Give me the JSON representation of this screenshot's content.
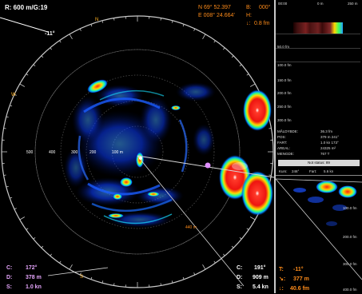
{
  "range_readout": "R: 600 m/G:19",
  "tilt_readout": "-11°",
  "position": {
    "north": "N 69° 52.397",
    "east": "E 008° 24.664'",
    "bearing_label": "B:",
    "bearing_value": "000°",
    "depth_label": "H:",
    "depth_value": "0.8 fm",
    "arrow_label": "↓:"
  },
  "range_ring_labels": [
    "500",
    "400",
    "300",
    "200",
    "100 m"
  ],
  "marker_distance": "440 m",
  "cursor_left": {
    "course_label": "C:",
    "course_value": "172°",
    "distance_label": "D:",
    "distance_value": "378 m",
    "speed_label": "S:",
    "speed_value": "1.0 kn"
  },
  "cursor_right": {
    "course_label": "C:",
    "course_value": "191°",
    "distance_label": "D:",
    "distance_value": "909 m",
    "speed_label": "S:",
    "speed_value": "5.4 kn"
  },
  "target": {
    "tilt_label": "T:",
    "tilt_value": "-11°",
    "horiz_label": "↘:",
    "horiz_value": "377 m",
    "depth_label": "↓:",
    "depth_value": "40.6 fm"
  },
  "echogram": {
    "top_scale": [
      "00:00",
      "0 m",
      "250 m"
    ],
    "depth_labels": [
      "50.0 fm",
      "100.0 fm",
      "150.0 fm",
      "200.0 fm",
      "250.0 fm",
      "300.0 fm"
    ]
  },
  "measure": {
    "rows": [
      {
        "label": "MÅLDYBDE:",
        "value": "36.3 fm"
      },
      {
        "label": "POS:",
        "value": "379 m   241°"
      },
      {
        "label": "FART:",
        "value": "1.0 kn   173°"
      },
      {
        "label": "AREAL:",
        "value": "24325 m²"
      },
      {
        "label": "MENGDE:",
        "value": "767 T"
      }
    ],
    "status": "Not status: 89",
    "course_label": "Kurs:",
    "course_value": "246°",
    "speed_label": "Fart:",
    "speed_value": "5.6 kn"
  },
  "side_scale_labels": [
    "100.0 fm",
    "200.0 fm",
    "300.0 fm",
    "400.0 fm"
  ],
  "colors": {
    "white_text": "#ffffff",
    "orange_text": "#ff8c1a",
    "purple_text": "#e8a7ff",
    "divider": "#c9c9c9"
  }
}
